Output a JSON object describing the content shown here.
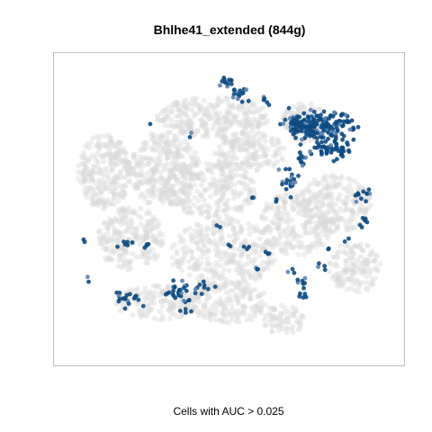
{
  "chart_data": {
    "type": "scatter",
    "title": "Bhlhe41_extended (844g)",
    "xlabel": "Cells with AUC > 0.025",
    "ylabel": "",
    "axes_visible": false,
    "grid": false,
    "legend": "none",
    "xlim": [
      0,
      100
    ],
    "ylim": [
      0,
      100
    ],
    "colors": {
      "background_cells": "#d9d9d9",
      "active_cells": "#0c4a82",
      "active_cells_light": "#5b84b1",
      "frame": "#bdbdbd"
    },
    "series": [
      {
        "name": "",
        "role": "background",
        "regions": [
          {
            "cx": 12,
            "cy": 63,
            "rx": 8,
            "ry": 13,
            "n": 260
          },
          {
            "cx": 30,
            "cy": 64,
            "rx": 11,
            "ry": 13,
            "n": 300
          },
          {
            "cx": 20,
            "cy": 40,
            "rx": 10,
            "ry": 11,
            "n": 240
          },
          {
            "cx": 45,
            "cy": 82,
            "rx": 17,
            "ry": 7,
            "n": 280
          },
          {
            "cx": 56,
            "cy": 70,
            "rx": 11,
            "ry": 7,
            "n": 170
          },
          {
            "cx": 44,
            "cy": 57,
            "rx": 14,
            "ry": 10,
            "n": 260
          },
          {
            "cx": 48,
            "cy": 35,
            "rx": 16,
            "ry": 12,
            "n": 320
          },
          {
            "cx": 28,
            "cy": 18,
            "rx": 13,
            "ry": 6,
            "n": 150
          },
          {
            "cx": 50,
            "cy": 18,
            "rx": 12,
            "ry": 7,
            "n": 170
          },
          {
            "cx": 70,
            "cy": 45,
            "rx": 11,
            "ry": 11,
            "n": 230
          },
          {
            "cx": 82,
            "cy": 52,
            "rx": 11,
            "ry": 10,
            "n": 200
          },
          {
            "cx": 88,
            "cy": 30,
            "rx": 8,
            "ry": 9,
            "n": 140
          },
          {
            "cx": 73,
            "cy": 80,
            "rx": 7,
            "ry": 7,
            "n": 120
          },
          {
            "cx": 66,
            "cy": 12,
            "rx": 7,
            "ry": 5,
            "n": 70
          }
        ]
      },
      {
        "name": "",
        "role": "active",
        "clusters": [
          {
            "cx": 78,
            "cy": 79,
            "rx": 9,
            "ry": 4.5,
            "n": 170
          },
          {
            "cx": 71,
            "cy": 79,
            "rx": 3.5,
            "ry": 3,
            "n": 40
          },
          {
            "cx": 81,
            "cy": 71,
            "rx": 6,
            "ry": 3,
            "n": 55
          },
          {
            "cx": 68,
            "cy": 60,
            "rx": 2.5,
            "ry": 4,
            "n": 20
          },
          {
            "cx": 72,
            "cy": 67,
            "rx": 2,
            "ry": 2,
            "n": 10
          },
          {
            "cx": 49,
            "cy": 94,
            "rx": 2,
            "ry": 1.5,
            "n": 12
          },
          {
            "cx": 53,
            "cy": 90,
            "rx": 2.5,
            "ry": 2.5,
            "n": 15
          },
          {
            "cx": 61,
            "cy": 88,
            "rx": 1.5,
            "ry": 1.5,
            "n": 5
          },
          {
            "cx": 90,
            "cy": 55,
            "rx": 3,
            "ry": 2,
            "n": 12
          },
          {
            "cx": 91,
            "cy": 45,
            "rx": 1.5,
            "ry": 2,
            "n": 6
          },
          {
            "cx": 37,
            "cy": 19,
            "rx": 1.5,
            "ry": 1.5,
            "n": 4
          },
          {
            "cx": 19,
            "cy": 19,
            "rx": 4,
            "ry": 2.5,
            "n": 18
          },
          {
            "cx": 34,
            "cy": 22,
            "rx": 4,
            "ry": 3,
            "n": 25
          },
          {
            "cx": 42,
            "cy": 23,
            "rx": 2.5,
            "ry": 2,
            "n": 10
          },
          {
            "cx": 36,
            "cy": 15,
            "rx": 1.5,
            "ry": 1.5,
            "n": 4
          },
          {
            "cx": 72,
            "cy": 23,
            "rx": 2,
            "ry": 3,
            "n": 12
          },
          {
            "cx": 78,
            "cy": 31,
            "rx": 1.5,
            "ry": 1.5,
            "n": 4
          },
          {
            "cx": 69,
            "cy": 29,
            "rx": 1.2,
            "ry": 1.2,
            "n": 3
          },
          {
            "cx": 18,
            "cy": 38,
            "rx": 3,
            "ry": 1.5,
            "n": 6
          },
          {
            "cx": 24,
            "cy": 38,
            "rx": 1.5,
            "ry": 1.2,
            "n": 4
          },
          {
            "cx": 55,
            "cy": 37,
            "rx": 1.2,
            "ry": 1.2,
            "n": 3
          },
          {
            "cx": 62,
            "cy": 35,
            "rx": 1.2,
            "ry": 1.2,
            "n": 3
          },
          {
            "cx": 58,
            "cy": 30,
            "rx": 1.2,
            "ry": 1.2,
            "n": 3
          },
          {
            "cx": 57,
            "cy": 54,
            "rx": 1.2,
            "ry": 1.2,
            "n": 3
          },
          {
            "cx": 46,
            "cy": 44,
            "rx": 1.2,
            "ry": 1.2,
            "n": 2
          },
          {
            "cx": 50,
            "cy": 38,
            "rx": 1.2,
            "ry": 1.2,
            "n": 2
          },
          {
            "cx": 8,
            "cy": 26,
            "rx": 1,
            "ry": 1,
            "n": 2
          },
          {
            "cx": 6,
            "cy": 39,
            "rx": 1,
            "ry": 1,
            "n": 2
          },
          {
            "cx": 38,
            "cy": 76,
            "rx": 1,
            "ry": 1,
            "n": 2
          },
          {
            "cx": 26,
            "cy": 79,
            "rx": 1,
            "ry": 1,
            "n": 1
          },
          {
            "cx": 85,
            "cy": 40,
            "rx": 1,
            "ry": 1,
            "n": 2
          },
          {
            "cx": 80,
            "cy": 36,
            "rx": 1,
            "ry": 1,
            "n": 2
          },
          {
            "cx": 64,
            "cy": 53,
            "rx": 1,
            "ry": 1,
            "n": 2
          }
        ]
      }
    ]
  }
}
